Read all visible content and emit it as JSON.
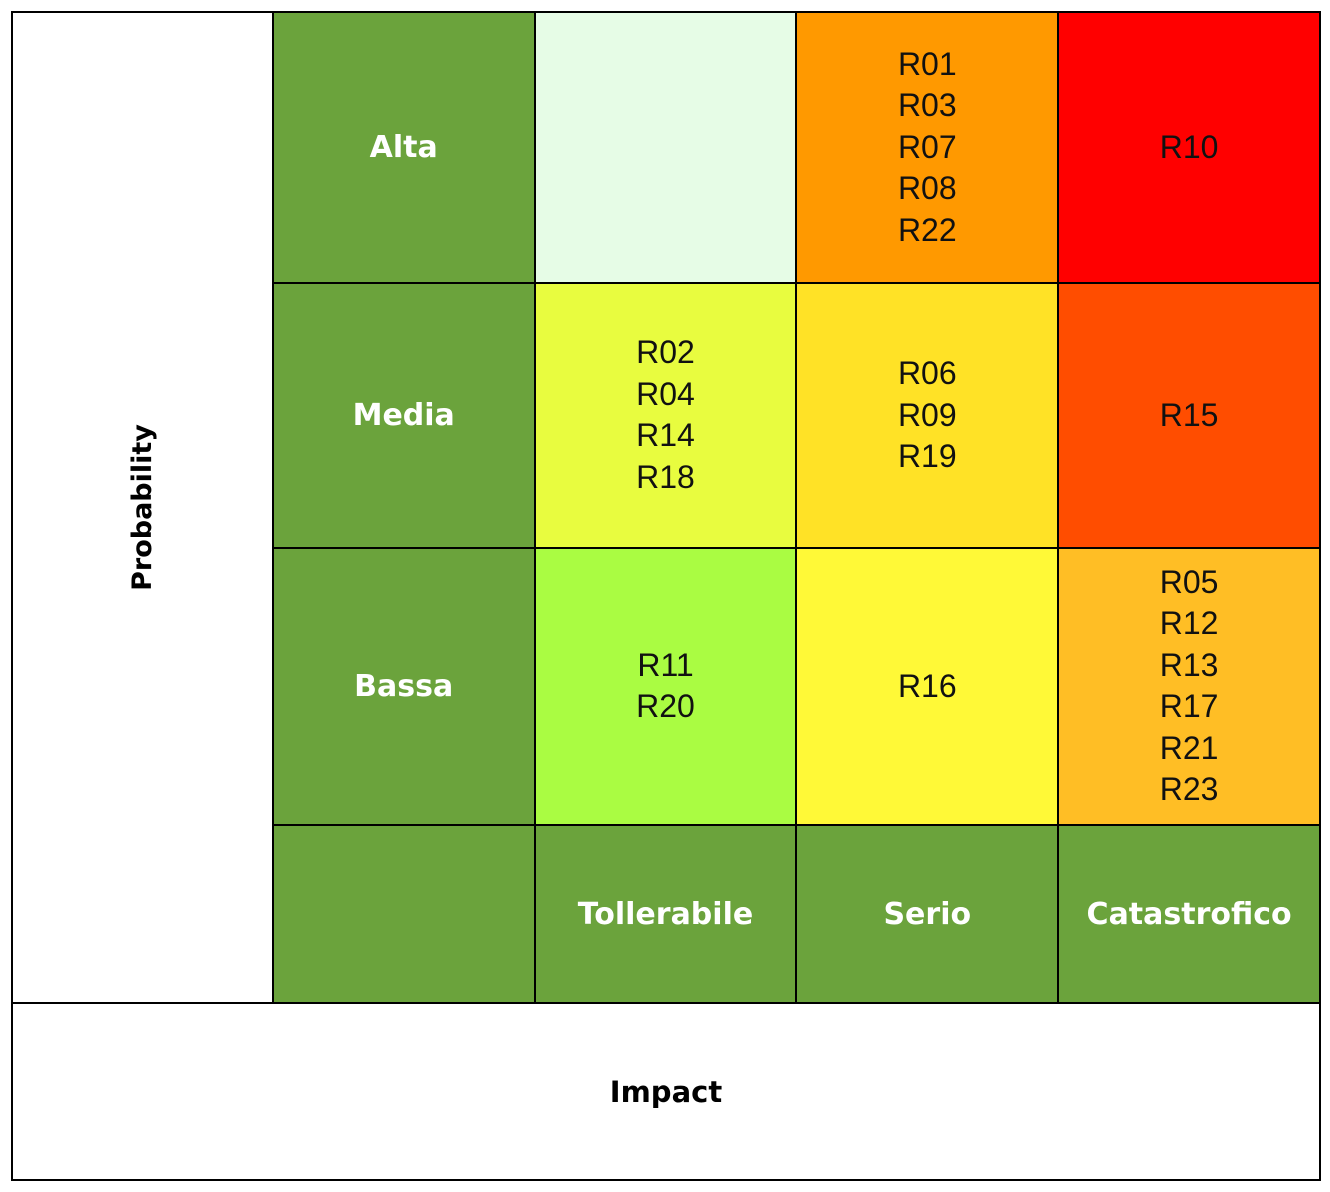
{
  "axis": {
    "y_label": "Probability",
    "x_label": "Impact"
  },
  "probability_levels": [
    "Alta",
    "Media",
    "Bassa"
  ],
  "impact_levels": [
    "Tollerabile",
    "Serio",
    "Catastrofico"
  ],
  "colors": {
    "header_green": "#6ba33c",
    "border": "#000000",
    "alta_tollerabile": "#e6fce6",
    "alta_serio": "#ff9900",
    "alta_catastrofico": "#ff0000",
    "media_tollerabile": "#e8fc3f",
    "media_serio": "#ffe226",
    "media_catastrofico": "#ff4d00",
    "bassa_tollerabile": "#aafc42",
    "bassa_serio": "#fff937",
    "bassa_catastrofico": "#ffbe25"
  },
  "matrix": [
    {
      "probability": "Alta",
      "cells": [
        {
          "impact": "Tollerabile",
          "risks": []
        },
        {
          "impact": "Serio",
          "risks": [
            "R01",
            "R03",
            "R07",
            "R08",
            "R22"
          ]
        },
        {
          "impact": "Catastrofico",
          "risks": [
            "R10"
          ]
        }
      ]
    },
    {
      "probability": "Media",
      "cells": [
        {
          "impact": "Tollerabile",
          "risks": [
            "R02",
            "R04",
            "R14",
            "R18"
          ]
        },
        {
          "impact": "Serio",
          "risks": [
            "R06",
            "R09",
            "R19"
          ]
        },
        {
          "impact": "Catastrofico",
          "risks": [
            "R15"
          ]
        }
      ]
    },
    {
      "probability": "Bassa",
      "cells": [
        {
          "impact": "Tollerabile",
          "risks": [
            "R11",
            "R20"
          ]
        },
        {
          "impact": "Serio",
          "risks": [
            "R16"
          ]
        },
        {
          "impact": "Catastrofico",
          "risks": [
            "R05",
            "R12",
            "R13",
            "R17",
            "R21",
            "R23"
          ]
        }
      ]
    }
  ]
}
